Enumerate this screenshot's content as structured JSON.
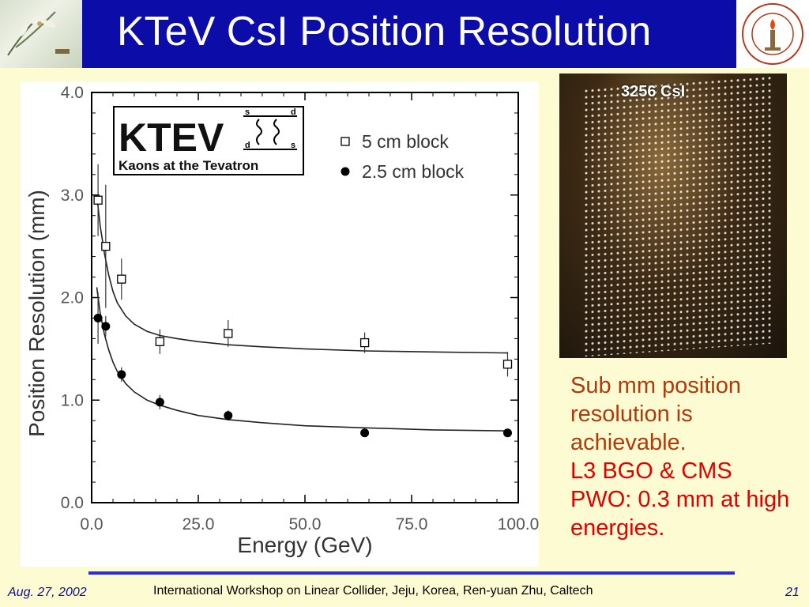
{
  "title": "KTeV CsI Position Resolution",
  "photo": {
    "label": "3256 CsI"
  },
  "note": {
    "line1": "Sub mm position resolution is achievable.",
    "line2": "L3 BGO & CMS PWO: 0.3 mm at high energies."
  },
  "footer": {
    "date": "Aug. 27, 2002",
    "center": "International Workshop on Linear Collider, Jeju, Korea, Ren-yuan Zhu, Caltech",
    "page": "21"
  },
  "ktev_logo": {
    "word": "KTEV",
    "subtitle": "Kaons at the Tevatron",
    "quarks": [
      "s",
      "d",
      "d",
      "s"
    ]
  },
  "chart_data": {
    "type": "scatter",
    "xlabel": "Energy  (GeV)",
    "ylabel": "Position Resolution  (mm)",
    "xlim": [
      0,
      100
    ],
    "ylim": [
      0,
      4
    ],
    "xticks": [
      "0.0",
      "25.0",
      "50.0",
      "75.0",
      "100.0"
    ],
    "yticks": [
      "0.0",
      "1.0",
      "2.0",
      "3.0",
      "4.0"
    ],
    "series": [
      {
        "name": "5 cm  block",
        "marker": "open-square",
        "points": [
          {
            "x": 1.5,
            "y": 2.95,
            "err": 0.35
          },
          {
            "x": 3.3,
            "y": 2.5,
            "err": 0.6
          },
          {
            "x": 7.0,
            "y": 2.18,
            "err": 0.2
          },
          {
            "x": 16.0,
            "y": 1.57,
            "err": 0.12
          },
          {
            "x": 32.0,
            "y": 1.65,
            "err": 0.13
          },
          {
            "x": 64.0,
            "y": 1.56,
            "err": 0.1
          },
          {
            "x": 97.5,
            "y": 1.35,
            "err": 0.12
          }
        ],
        "fit": [
          [
            1.2,
            3.0
          ],
          [
            2,
            2.7
          ],
          [
            3,
            2.43
          ],
          [
            4,
            2.22
          ],
          [
            5,
            2.06
          ],
          [
            6,
            1.95
          ],
          [
            8,
            1.82
          ],
          [
            10,
            1.74
          ],
          [
            13,
            1.67
          ],
          [
            16,
            1.63
          ],
          [
            20,
            1.6
          ],
          [
            25,
            1.57
          ],
          [
            32,
            1.54
          ],
          [
            40,
            1.52
          ],
          [
            50,
            1.5
          ],
          [
            64,
            1.48
          ],
          [
            80,
            1.47
          ],
          [
            97.5,
            1.46
          ]
        ]
      },
      {
        "name": "2.5 cm  block",
        "marker": "filled-circle",
        "points": [
          {
            "x": 1.5,
            "y": 1.8,
            "err": 0.25
          },
          {
            "x": 3.3,
            "y": 1.72,
            "err": 0.1
          },
          {
            "x": 7.0,
            "y": 1.25,
            "err": 0.07
          },
          {
            "x": 16.0,
            "y": 0.98,
            "err": 0.07
          },
          {
            "x": 32.0,
            "y": 0.85,
            "err": 0.05
          },
          {
            "x": 64.0,
            "y": 0.68,
            "err": 0.04
          },
          {
            "x": 97.5,
            "y": 0.68,
            "err": 0.04
          }
        ],
        "fit": [
          [
            1.2,
            2.1
          ],
          [
            2,
            1.85
          ],
          [
            3,
            1.64
          ],
          [
            4,
            1.49
          ],
          [
            5,
            1.37
          ],
          [
            6,
            1.28
          ],
          [
            8,
            1.16
          ],
          [
            10,
            1.08
          ],
          [
            13,
            1.0
          ],
          [
            16,
            0.95
          ],
          [
            20,
            0.9
          ],
          [
            25,
            0.85
          ],
          [
            32,
            0.81
          ],
          [
            40,
            0.78
          ],
          [
            50,
            0.75
          ],
          [
            64,
            0.73
          ],
          [
            80,
            0.71
          ],
          [
            97.5,
            0.7
          ]
        ]
      }
    ]
  }
}
